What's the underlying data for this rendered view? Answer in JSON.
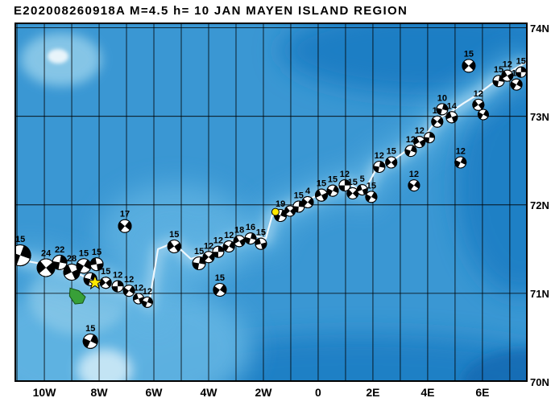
{
  "title": "E202008260918A M=4.5 h= 10 JAN MAYEN ISLAND REGION",
  "map": {
    "lon_min": -11.09,
    "lon_max": 7.65,
    "lat_min": 70.0,
    "lat_max": 74.06,
    "grid_step_deg": 1,
    "x_tick_labels": [
      {
        "text": "10W",
        "lon": -10
      },
      {
        "text": "8W",
        "lon": -8
      },
      {
        "text": "6W",
        "lon": -6
      },
      {
        "text": "4W",
        "lon": -4
      },
      {
        "text": "2W",
        "lon": -2
      },
      {
        "text": "0",
        "lon": 0
      },
      {
        "text": "2E",
        "lon": 2
      },
      {
        "text": "4E",
        "lon": 4
      },
      {
        "text": "6E",
        "lon": 6
      }
    ],
    "y_tick_labels": [
      {
        "text": "74N",
        "lat": 74
      },
      {
        "text": "73N",
        "lat": 73
      },
      {
        "text": "72N",
        "lat": 72
      },
      {
        "text": "71N",
        "lat": 71
      },
      {
        "text": "70N",
        "lat": 70
      }
    ]
  },
  "colors": {
    "ocean_base": "#3a97d3",
    "ocean_dark": "#1f7ec4",
    "ocean_darker": "#136cb4",
    "ocean_light": "#63b5e3",
    "ocean_lighter": "#8ecbe9",
    "ocean_pale": "#c9e7f6",
    "ridge_line": "#eef7fc",
    "grid": "#000000",
    "island_fill": "#38a038",
    "island_outline": "#145214",
    "star_fill": "#ffe800",
    "dot_fill": "#ffe800",
    "ball_fill": "#ffffff",
    "ball_shade": "#000000"
  },
  "event_star": {
    "lon": -8.15,
    "lat": 71.12
  },
  "highlight_dot": {
    "lon": -1.56,
    "lat": 71.92
  },
  "island": [
    [
      -9.06,
      71.06
    ],
    [
      -8.74,
      71.03
    ],
    [
      -8.5,
      70.96
    ],
    [
      -8.6,
      70.89
    ],
    [
      -8.88,
      70.88
    ],
    [
      -9.08,
      70.97
    ]
  ],
  "ridge_line": [
    [
      -11.09,
      71.39
    ],
    [
      -9.85,
      71.32
    ],
    [
      -8.68,
      71.21
    ],
    [
      -8.09,
      71.12
    ],
    [
      -7.21,
      71.06
    ],
    [
      -6.56,
      70.97
    ],
    [
      -6.18,
      70.88
    ],
    [
      -5.85,
      71.5
    ],
    [
      -5.29,
      71.57
    ],
    [
      -4.65,
      71.39
    ],
    [
      -4.03,
      71.45
    ],
    [
      -3.24,
      71.59
    ],
    [
      -2.44,
      71.66
    ],
    [
      -1.91,
      71.62
    ],
    [
      -1.68,
      71.88
    ],
    [
      -1.03,
      71.97
    ],
    [
      -0.29,
      72.07
    ],
    [
      0.44,
      72.17
    ],
    [
      1.09,
      72.24
    ],
    [
      1.68,
      72.15
    ],
    [
      2.2,
      72.45
    ],
    [
      2.85,
      72.53
    ],
    [
      3.44,
      72.66
    ],
    [
      3.88,
      72.77
    ],
    [
      4.35,
      72.97
    ],
    [
      4.79,
      73.04
    ],
    [
      5.32,
      73.15
    ],
    [
      5.79,
      73.24
    ],
    [
      6.26,
      73.35
    ],
    [
      6.76,
      73.46
    ],
    [
      7.26,
      73.55
    ],
    [
      7.65,
      73.62
    ]
  ],
  "focal_mechanisms": [
    {
      "lon": -10.88,
      "lat": 71.43,
      "label": "15",
      "size": 26,
      "rot": 20
    },
    {
      "lon": -9.94,
      "lat": 71.29,
      "label": "24",
      "size": 22,
      "rot": 50
    },
    {
      "lon": -9.44,
      "lat": 71.35,
      "label": "22",
      "size": 18,
      "rot": 10
    },
    {
      "lon": -9.0,
      "lat": 71.24,
      "label": "28",
      "size": 20,
      "rot": 65
    },
    {
      "lon": -8.56,
      "lat": 71.31,
      "label": "15",
      "size": 18,
      "rot": 30
    },
    {
      "lon": -8.09,
      "lat": 71.33,
      "label": "15",
      "size": 16,
      "rot": 80
    },
    {
      "lon": -8.32,
      "lat": 71.16,
      "label": "",
      "size": 16,
      "rot": 15
    },
    {
      "lon": -7.76,
      "lat": 71.12,
      "label": "15",
      "size": 14,
      "rot": 50
    },
    {
      "lon": -7.32,
      "lat": 71.08,
      "label": "12",
      "size": 14,
      "rot": 0
    },
    {
      "lon": -6.91,
      "lat": 71.03,
      "label": "12",
      "size": 14,
      "rot": 35
    },
    {
      "lon": -6.56,
      "lat": 70.94,
      "label": "12",
      "size": 13,
      "rot": 70
    },
    {
      "lon": -6.24,
      "lat": 70.9,
      "label": "12",
      "size": 13,
      "rot": 20
    },
    {
      "lon": -7.06,
      "lat": 71.76,
      "label": "17",
      "size": 16,
      "rot": 40
    },
    {
      "lon": -8.32,
      "lat": 70.46,
      "label": "15",
      "size": 18,
      "rot": 25
    },
    {
      "lon": -5.26,
      "lat": 71.53,
      "label": "15",
      "size": 16,
      "rot": 55
    },
    {
      "lon": -4.35,
      "lat": 71.34,
      "label": "15",
      "size": 16,
      "rot": 10
    },
    {
      "lon": -4.0,
      "lat": 71.41,
      "label": "12",
      "size": 14,
      "rot": 45
    },
    {
      "lon": -3.65,
      "lat": 71.47,
      "label": "12",
      "size": 14,
      "rot": 0
    },
    {
      "lon": -3.26,
      "lat": 71.53,
      "label": "12",
      "size": 14,
      "rot": 30
    },
    {
      "lon": -2.88,
      "lat": 71.59,
      "label": "18",
      "size": 14,
      "rot": 60
    },
    {
      "lon": -2.47,
      "lat": 71.62,
      "label": "16",
      "size": 14,
      "rot": 15
    },
    {
      "lon": -2.09,
      "lat": 71.56,
      "label": "15",
      "size": 14,
      "rot": 75
    },
    {
      "lon": -3.59,
      "lat": 71.04,
      "label": "15",
      "size": 16,
      "rot": 35
    },
    {
      "lon": -1.38,
      "lat": 71.88,
      "label": "19",
      "size": 15,
      "rot": 20
    },
    {
      "lon": -1.03,
      "lat": 71.93,
      "label": "",
      "size": 13,
      "rot": 50
    },
    {
      "lon": -0.71,
      "lat": 71.98,
      "label": "15",
      "size": 14,
      "rot": 5
    },
    {
      "lon": -0.38,
      "lat": 72.03,
      "label": "4",
      "size": 14,
      "rot": 40
    },
    {
      "lon": 0.12,
      "lat": 72.11,
      "label": "15",
      "size": 15,
      "rot": 65
    },
    {
      "lon": 0.53,
      "lat": 72.16,
      "label": "15",
      "size": 14,
      "rot": 25
    },
    {
      "lon": 0.97,
      "lat": 72.22,
      "label": "12",
      "size": 14,
      "rot": 0
    },
    {
      "lon": 1.26,
      "lat": 72.13,
      "label": "15",
      "size": 14,
      "rot": 45
    },
    {
      "lon": 1.61,
      "lat": 72.17,
      "label": "5",
      "size": 13,
      "rot": 70
    },
    {
      "lon": 1.94,
      "lat": 72.09,
      "label": "15",
      "size": 14,
      "rot": 30
    },
    {
      "lon": 2.23,
      "lat": 72.43,
      "label": "12",
      "size": 14,
      "rot": 10
    },
    {
      "lon": 2.67,
      "lat": 72.48,
      "label": "15",
      "size": 14,
      "rot": 50
    },
    {
      "lon": 3.38,
      "lat": 72.61,
      "label": "12",
      "size": 14,
      "rot": 20
    },
    {
      "lon": 3.7,
      "lat": 72.71,
      "label": "12",
      "size": 14,
      "rot": 60
    },
    {
      "lon": 3.5,
      "lat": 72.22,
      "label": "12",
      "size": 14,
      "rot": 35
    },
    {
      "lon": 4.06,
      "lat": 72.76,
      "label": "",
      "size": 13,
      "rot": 5
    },
    {
      "lon": 4.35,
      "lat": 72.94,
      "label": "15",
      "size": 14,
      "rot": 40
    },
    {
      "lon": 4.53,
      "lat": 73.08,
      "label": "10",
      "size": 14,
      "rot": 15
    },
    {
      "lon": 4.88,
      "lat": 72.99,
      "label": "14",
      "size": 14,
      "rot": 70
    },
    {
      "lon": 5.2,
      "lat": 72.48,
      "label": "12",
      "size": 14,
      "rot": 25
    },
    {
      "lon": 5.85,
      "lat": 73.13,
      "label": "12",
      "size": 14,
      "rot": 55
    },
    {
      "lon": 6.03,
      "lat": 73.02,
      "label": "",
      "size": 13,
      "rot": 30
    },
    {
      "lon": 5.5,
      "lat": 73.57,
      "label": "15",
      "size": 16,
      "rot": 45
    },
    {
      "lon": 6.59,
      "lat": 73.4,
      "label": "15",
      "size": 14,
      "rot": 10
    },
    {
      "lon": 6.91,
      "lat": 73.46,
      "label": "12",
      "size": 14,
      "rot": 60
    },
    {
      "lon": 7.24,
      "lat": 73.36,
      "label": "12",
      "size": 14,
      "rot": 30
    },
    {
      "lon": 7.41,
      "lat": 73.5,
      "label": "15",
      "size": 13,
      "rot": 0
    }
  ]
}
